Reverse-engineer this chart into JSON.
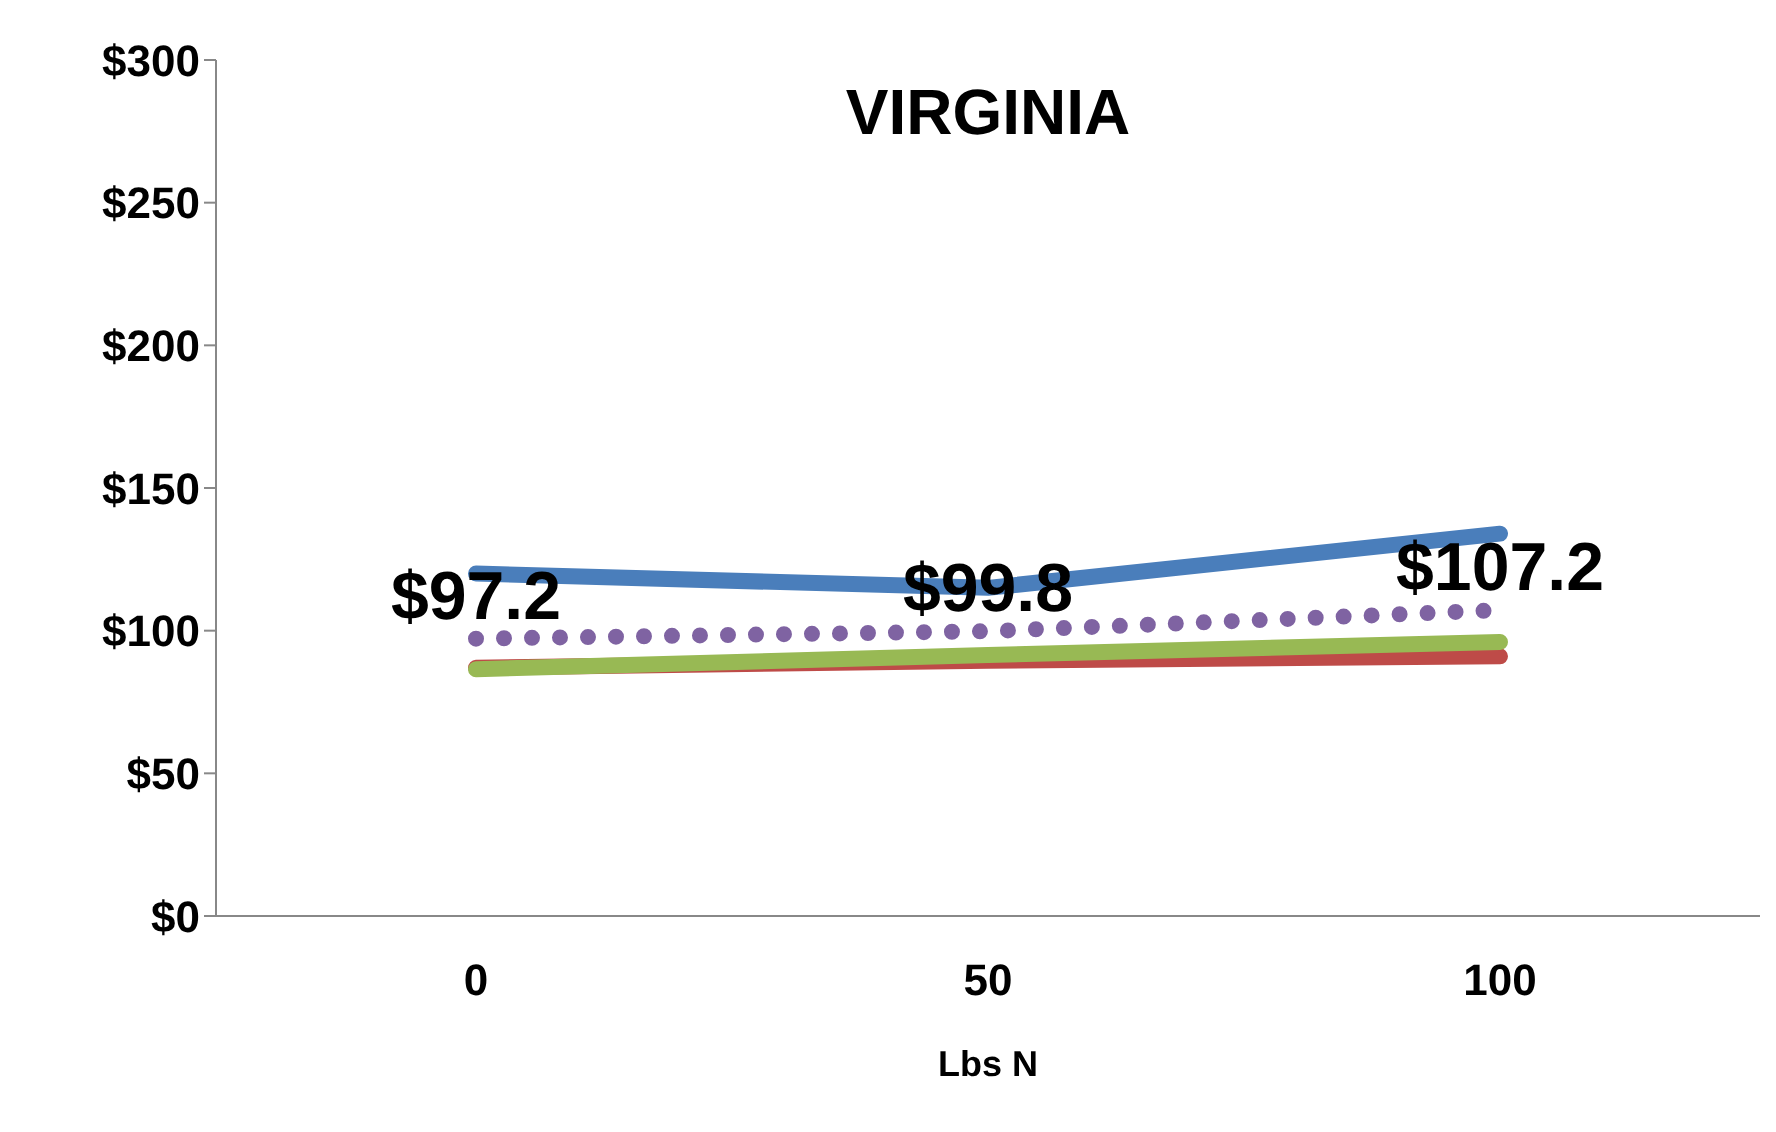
{
  "chart_data": {
    "type": "line",
    "title": "VIRGINIA",
    "xlabel": "Lbs N",
    "categories": [
      "0",
      "50",
      "100"
    ],
    "series": [
      {
        "color": "#4a7ebb",
        "values": [
          120,
          115,
          134
        ]
      },
      {
        "color": "#be4b48",
        "values": [
          87,
          89.5,
          91
        ]
      },
      {
        "color": "#98b954",
        "values": [
          86.5,
          91.5,
          96
        ]
      },
      {
        "color": "#7f63a2",
        "values": [
          97.2,
          99.8,
          107.2
        ],
        "line_style": "dotted",
        "value_labels": [
          "$97.2",
          "$99.8",
          "$107.2"
        ]
      }
    ],
    "ylim": [
      0,
      300
    ],
    "yticks": [
      {
        "value": 0,
        "label": "$0"
      },
      {
        "value": 50,
        "label": "$50"
      },
      {
        "value": 100,
        "label": "$100"
      },
      {
        "value": 150,
        "label": "$150"
      },
      {
        "value": 200,
        "label": "$200"
      },
      {
        "value": 250,
        "label": "$250"
      },
      {
        "value": 300,
        "label": "$300"
      }
    ],
    "grid": false,
    "legend": false,
    "marker": "none"
  }
}
